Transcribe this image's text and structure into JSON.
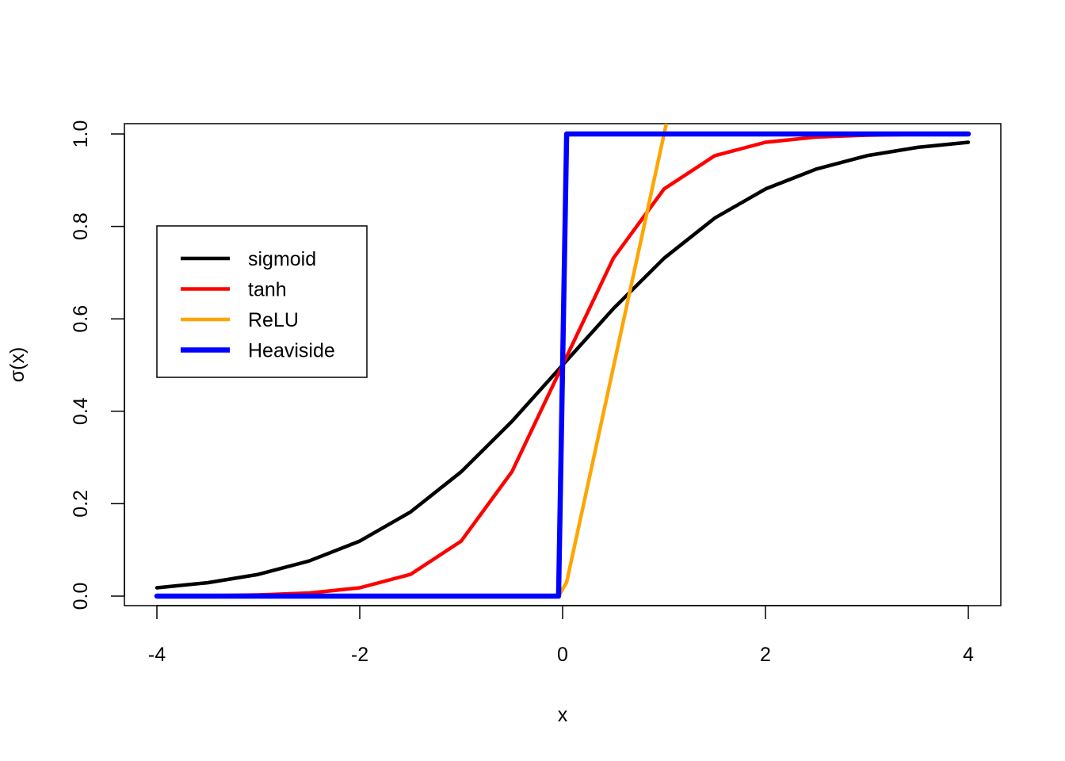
{
  "chart_data": {
    "type": "line",
    "title": "",
    "xlabel": "x",
    "ylabel": "σ(x)",
    "xlim": [
      -4,
      4
    ],
    "ylim": [
      0,
      1
    ],
    "xticks": [
      -4,
      -2,
      0,
      2,
      4
    ],
    "yticks": [
      0.0,
      0.2,
      0.4,
      0.6,
      0.8,
      1.0
    ],
    "xtick_labels": [
      "-4",
      "-2",
      "0",
      "2",
      "4"
    ],
    "ytick_labels": [
      "0.0",
      "0.2",
      "0.4",
      "0.6",
      "0.8",
      "1.0"
    ],
    "grid": false,
    "legend_position": "left",
    "x": [
      -4.0,
      -3.5,
      -3.0,
      -2.5,
      -2.0,
      -1.5,
      -1.0,
      -0.5,
      0.0,
      0.5,
      1.0,
      1.5,
      2.0,
      2.5,
      3.0,
      3.5,
      4.0
    ],
    "series": [
      {
        "name": "sigmoid",
        "color": "#000000",
        "y": [
          0.018,
          0.029,
          0.047,
          0.076,
          0.119,
          0.182,
          0.269,
          0.378,
          0.5,
          0.622,
          0.731,
          0.818,
          0.881,
          0.924,
          0.953,
          0.971,
          0.982
        ]
      },
      {
        "name": "tanh",
        "color": "#ff0000",
        "y": [
          0.0003,
          0.0009,
          0.0025,
          0.0067,
          0.018,
          0.047,
          0.119,
          0.269,
          0.5,
          0.731,
          0.881,
          0.953,
          0.982,
          0.9933,
          0.9975,
          0.9991,
          0.9997
        ]
      },
      {
        "name": "ReLU",
        "color": "#ffa500",
        "x": [
          -4.0,
          -0.04,
          0.04,
          1.02
        ],
        "y": [
          0.0,
          0.0,
          0.03,
          1.02
        ]
      },
      {
        "name": "Heaviside",
        "color": "#0000ff",
        "x": [
          -4.0,
          -0.04,
          0.04,
          4.0
        ],
        "y": [
          0.0,
          0.0,
          1.0,
          1.0
        ]
      }
    ]
  }
}
